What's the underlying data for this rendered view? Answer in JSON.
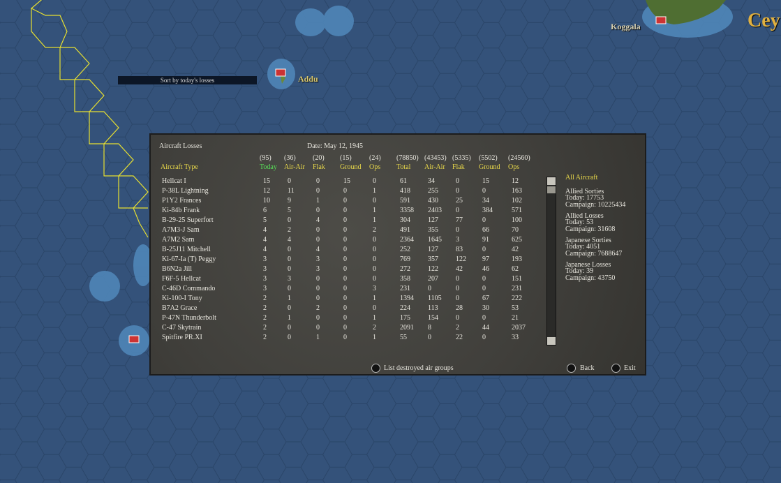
{
  "map_labels": {
    "koggala": "Koggala",
    "ceylon": "Cey",
    "addu": "Addu"
  },
  "tooltip": "Sort by today's losses",
  "panel": {
    "title": "Aircraft Losses",
    "date": "Date: May 12, 1945",
    "totals": [
      "(95)",
      "(36)",
      "(20)",
      "(15)",
      "(24)",
      "(78850)",
      "(43453)",
      "(5335)",
      "(5502)",
      "(24560)"
    ],
    "headers": [
      "Aircraft Type",
      "Today",
      "Air-Air",
      "Flak",
      "Ground",
      "Ops",
      "Total",
      "Air-Air",
      "Flak",
      "Ground",
      "Ops"
    ],
    "rows": [
      [
        "Hellcat I",
        "15",
        "0",
        "0",
        "15",
        "0",
        "61",
        "34",
        "0",
        "15",
        "12"
      ],
      [
        "P-38L Lightning",
        "12",
        "11",
        "0",
        "0",
        "1",
        "418",
        "255",
        "0",
        "0",
        "163"
      ],
      [
        "P1Y2 Frances",
        "10",
        "9",
        "1",
        "0",
        "0",
        "591",
        "430",
        "25",
        "34",
        "102"
      ],
      [
        "Ki-84b Frank",
        "6",
        "5",
        "0",
        "0",
        "1",
        "3358",
        "2403",
        "0",
        "384",
        "571"
      ],
      [
        "B-29-25 Superfort",
        "5",
        "0",
        "4",
        "0",
        "1",
        "304",
        "127",
        "77",
        "0",
        "100"
      ],
      [
        "A7M3-J Sam",
        "4",
        "2",
        "0",
        "0",
        "2",
        "491",
        "355",
        "0",
        "66",
        "70"
      ],
      [
        "A7M2 Sam",
        "4",
        "4",
        "0",
        "0",
        "0",
        "2364",
        "1645",
        "3",
        "91",
        "625"
      ],
      [
        "B-25J11 Mitchell",
        "4",
        "0",
        "4",
        "0",
        "0",
        "252",
        "127",
        "83",
        "0",
        "42"
      ],
      [
        "Ki-67-Ia (T) Peggy",
        "3",
        "0",
        "3",
        "0",
        "0",
        "769",
        "357",
        "122",
        "97",
        "193"
      ],
      [
        "B6N2a Jill",
        "3",
        "0",
        "3",
        "0",
        "0",
        "272",
        "122",
        "42",
        "46",
        "62"
      ],
      [
        "F6F-5 Hellcat",
        "3",
        "3",
        "0",
        "0",
        "0",
        "358",
        "207",
        "0",
        "0",
        "151"
      ],
      [
        "C-46D Commando",
        "3",
        "0",
        "0",
        "0",
        "3",
        "231",
        "0",
        "0",
        "0",
        "231"
      ],
      [
        "Ki-100-I Tony",
        "2",
        "1",
        "0",
        "0",
        "1",
        "1394",
        "1105",
        "0",
        "67",
        "222"
      ],
      [
        "B7A2 Grace",
        "2",
        "0",
        "2",
        "0",
        "0",
        "224",
        "113",
        "28",
        "30",
        "53"
      ],
      [
        "P-47N Thunderbolt",
        "2",
        "1",
        "0",
        "0",
        "1",
        "175",
        "154",
        "0",
        "0",
        "21"
      ],
      [
        "C-47 Skytrain",
        "2",
        "0",
        "0",
        "0",
        "2",
        "2091",
        "8",
        "2",
        "44",
        "2037"
      ],
      [
        "Spitfire PR.XI",
        "2",
        "0",
        "1",
        "0",
        "1",
        "55",
        "0",
        "22",
        "0",
        "33"
      ]
    ],
    "summary": {
      "filter": "All Aircraft",
      "groups": [
        {
          "title": "Allied Sorties",
          "today": "Today:   17753",
          "campaign": "Campaign: 10225434"
        },
        {
          "title": "Allied Losses",
          "today": "Today:    53",
          "campaign": "Campaign: 31608"
        },
        {
          "title": "Japanese Sorties",
          "today": "Today:   4051",
          "campaign": "Campaign: 7688647"
        },
        {
          "title": "Japanese Losses",
          "today": "Today:    39",
          "campaign": "Campaign: 43750"
        }
      ]
    }
  },
  "buttons": {
    "list_destroyed": "List destroyed air groups",
    "back": "Back",
    "exit": "Exit"
  }
}
